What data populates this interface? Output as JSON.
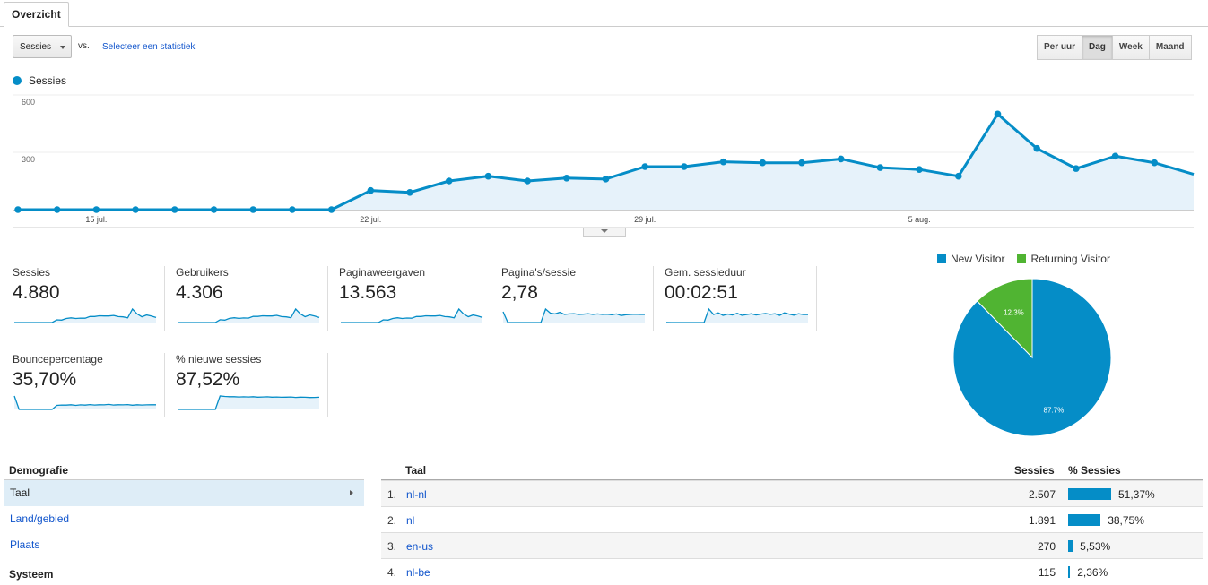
{
  "tab": {
    "label": "Overzicht"
  },
  "toolbar": {
    "metric_select": "Sessies",
    "vs_label": "vs.",
    "secondary_metric_link": "Selecteer een statistiek",
    "granularity": [
      {
        "label": "Per uur",
        "active": false
      },
      {
        "label": "Dag",
        "active": true
      },
      {
        "label": "Week",
        "active": false
      },
      {
        "label": "Maand",
        "active": false
      }
    ]
  },
  "chart_data": {
    "type": "area",
    "series": [
      {
        "name": "Sessies",
        "values": [
          0,
          0,
          0,
          0,
          0,
          0,
          0,
          0,
          0,
          100,
          90,
          150,
          175,
          150,
          165,
          160,
          225,
          225,
          250,
          245,
          245,
          265,
          220,
          210,
          175,
          500,
          320,
          215,
          280,
          245,
          185
        ]
      }
    ],
    "x_tick_labels": [
      {
        "label": "15 jul.",
        "index": 2
      },
      {
        "label": "22 jul.",
        "index": 9
      },
      {
        "label": "29 jul.",
        "index": 16
      },
      {
        "label": "5 aug.",
        "index": 23
      }
    ],
    "y_tick_labels": [
      "600",
      "300"
    ],
    "ylim": [
      0,
      600
    ],
    "color": "#058dc7"
  },
  "metrics": [
    {
      "label": "Sessies",
      "value": "4.880",
      "trend": [
        0,
        0,
        0,
        0,
        0,
        0,
        0,
        0,
        0,
        100,
        90,
        150,
        175,
        150,
        165,
        160,
        225,
        225,
        250,
        245,
        245,
        265,
        220,
        210,
        175,
        500,
        320,
        215,
        280,
        245,
        185
      ]
    },
    {
      "label": "Gebruikers",
      "value": "4.306",
      "trend": [
        0,
        0,
        0,
        0,
        0,
        0,
        0,
        0,
        0,
        90,
        80,
        135,
        155,
        135,
        150,
        145,
        200,
        200,
        220,
        215,
        215,
        235,
        195,
        185,
        155,
        440,
        285,
        190,
        250,
        215,
        165
      ]
    },
    {
      "label": "Paginaweergaven",
      "value": "13.563",
      "trend": [
        0,
        0,
        0,
        0,
        0,
        0,
        0,
        0,
        0,
        280,
        250,
        420,
        490,
        420,
        460,
        445,
        625,
        625,
        695,
        680,
        680,
        735,
        610,
        585,
        485,
        1390,
        890,
        600,
        780,
        680,
        515
      ]
    },
    {
      "label": "Pagina's/sessie",
      "value": "2,78",
      "trend": [
        4,
        0,
        0,
        0,
        0,
        0,
        0,
        0,
        0,
        5,
        3.5,
        3.2,
        3.8,
        3,
        3.2,
        3.3,
        3,
        3.1,
        3.3,
        3,
        3.2,
        3,
        3.1,
        2.9,
        3.2,
        2.6,
        2.9,
        3,
        3.1,
        3,
        3
      ]
    },
    {
      "label": "Gem. sessieduur",
      "value": "00:02:51",
      "trend": [
        3,
        0,
        0,
        0,
        0,
        0,
        0,
        0,
        0,
        320,
        190,
        230,
        170,
        200,
        180,
        220,
        170,
        190,
        210,
        180,
        200,
        215,
        195,
        210,
        170,
        230,
        200,
        175,
        210,
        190,
        190
      ]
    },
    {
      "label": "Bouncepercentage",
      "value": "35,70%",
      "trend": [
        100,
        0,
        0,
        0,
        0,
        0,
        0,
        0,
        0,
        30,
        33,
        32,
        35,
        30,
        34,
        32,
        36,
        33,
        35,
        34,
        37,
        33,
        35,
        34,
        36,
        31,
        35,
        33,
        34,
        35,
        35
      ]
    },
    {
      "label": "% nieuwe sessies",
      "value": "87,52%",
      "trend": [
        0,
        0,
        0,
        0,
        0,
        0,
        0,
        0,
        0,
        95,
        92,
        90,
        90,
        88,
        89,
        88,
        90,
        87,
        88,
        89,
        87,
        88,
        86,
        87,
        88,
        85,
        87,
        86,
        84,
        85,
        86
      ]
    }
  ],
  "pie": {
    "legend": [
      {
        "label": "New Visitor",
        "color": "#058dc7"
      },
      {
        "label": "Returning Visitor",
        "color": "#50b432"
      }
    ],
    "slices": [
      {
        "label": "New Visitor",
        "value": 87.7,
        "text": "87.7%",
        "color": "#058dc7"
      },
      {
        "label": "Returning Visitor",
        "value": 12.3,
        "text": "12.3%",
        "color": "#50b432"
      }
    ]
  },
  "left_nav": {
    "section_title": "Demografie",
    "items": [
      {
        "label": "Taal",
        "active": true
      },
      {
        "label": "Land/gebied",
        "active": false
      },
      {
        "label": "Plaats",
        "active": false
      }
    ],
    "next_section": "Systeem"
  },
  "table": {
    "headers": {
      "dimension": "Taal",
      "sessions": "Sessies",
      "pct": "% Sessies"
    },
    "rows": [
      {
        "index": "1.",
        "language": "nl-nl",
        "sessions": "2.507",
        "pct_label": "51,37%",
        "pct": 51.37
      },
      {
        "index": "2.",
        "language": "nl",
        "sessions": "1.891",
        "pct_label": "38,75%",
        "pct": 38.75
      },
      {
        "index": "3.",
        "language": "en-us",
        "sessions": "270",
        "pct_label": "5,53%",
        "pct": 5.53
      },
      {
        "index": "4.",
        "language": "nl-be",
        "sessions": "115",
        "pct_label": "2,36%",
        "pct": 2.36
      }
    ]
  }
}
